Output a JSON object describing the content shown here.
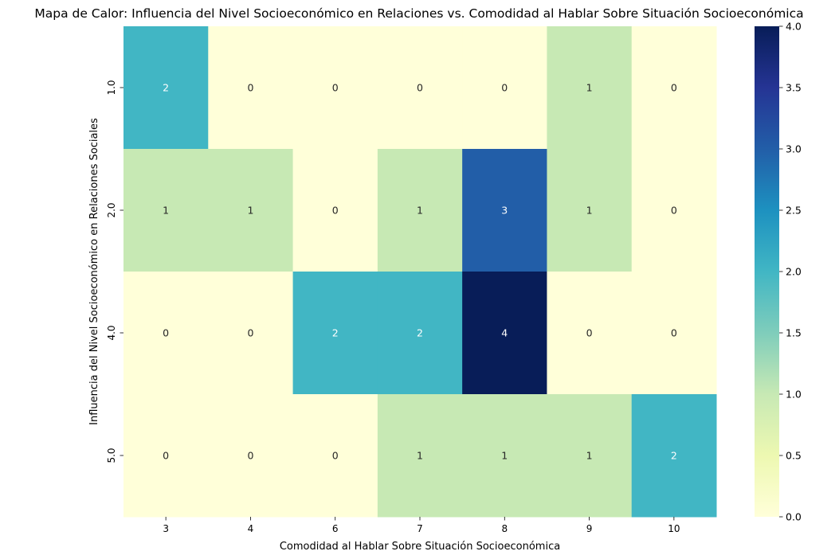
{
  "chart_data": {
    "type": "heatmap",
    "title": "Mapa de Calor: Influencia del Nivel Socioeconómico en Relaciones vs. Comodidad al Hablar Sobre Situación Socioeconómica",
    "xlabel": "Comodidad al Hablar Sobre Situación Socioeconómica",
    "ylabel": "Influencia del Nivel Socioeconómico en Relaciones Sociales",
    "x_categories": [
      "3",
      "4",
      "6",
      "7",
      "8",
      "9",
      "10"
    ],
    "y_categories": [
      "1.0",
      "2.0",
      "4.0",
      "5.0"
    ],
    "values": [
      [
        2,
        0,
        0,
        0,
        0,
        1,
        0
      ],
      [
        1,
        1,
        0,
        1,
        3,
        1,
        0
      ],
      [
        0,
        0,
        2,
        2,
        4,
        0,
        0
      ],
      [
        0,
        0,
        0,
        1,
        1,
        1,
        2
      ]
    ],
    "annotate": true,
    "colormap": "YlGnBu",
    "color_range": [
      0,
      4
    ],
    "colorbar_ticks": [
      "0.0",
      "0.5",
      "1.0",
      "1.5",
      "2.0",
      "2.5",
      "3.0",
      "3.5",
      "4.0"
    ],
    "colorbar_stops": [
      "#ffffd9",
      "#edf8b1",
      "#c7e9b4",
      "#7fcdbb",
      "#41b6c4",
      "#1d91c0",
      "#225ea8",
      "#253494",
      "#081d58"
    ],
    "grid": false
  }
}
